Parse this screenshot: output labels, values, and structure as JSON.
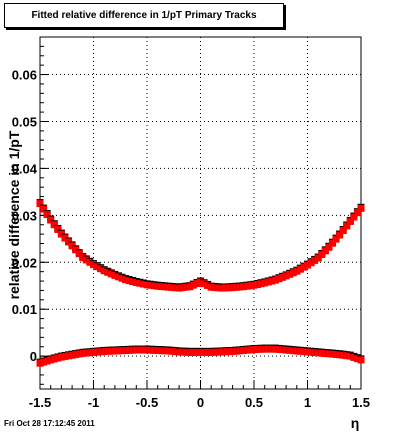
{
  "title": "Fitted relative difference in 1/pT  Primary Tracks",
  "timestamp": "Fri Oct 28 17:12:45 2011",
  "chart_data": {
    "type": "scatter",
    "title": "Fitted relative difference in 1/pT  Primary Tracks",
    "xlabel": "η",
    "ylabel": "relative difference in 1/pT",
    "xlim": [
      -1.5,
      1.5
    ],
    "ylim": [
      -0.007,
      0.068
    ],
    "grid": true,
    "x_ticks": [
      "-1.5",
      "-1",
      "-0.5",
      "0",
      "0.5",
      "1",
      "1.5"
    ],
    "y_ticks": [
      "0",
      "0.01",
      "0.02",
      "0.03",
      "0.04",
      "0.05",
      "0.06"
    ],
    "x_tick_values": [
      -1.5,
      -1,
      -0.5,
      0,
      0.5,
      1,
      1.5
    ],
    "y_tick_values": [
      0,
      0.01,
      0.02,
      0.03,
      0.04,
      0.05,
      0.06
    ],
    "x": [
      -1.5,
      -1.4,
      -1.3,
      -1.2,
      -1.1,
      -1.0,
      -0.9,
      -0.8,
      -0.7,
      -0.6,
      -0.5,
      -0.4,
      -0.3,
      -0.2,
      -0.1,
      0.0,
      0.1,
      0.2,
      0.3,
      0.4,
      0.5,
      0.6,
      0.7,
      0.8,
      0.9,
      1.0,
      1.1,
      1.2,
      1.3,
      1.4,
      1.5
    ],
    "series": [
      {
        "color": "#ff0000",
        "values": [
          0.0325,
          0.029,
          0.026,
          0.0235,
          0.021,
          0.0195,
          0.0182,
          0.0172,
          0.0163,
          0.0157,
          0.0152,
          0.0149,
          0.0147,
          0.0145,
          0.0148,
          0.0158,
          0.0147,
          0.0145,
          0.0146,
          0.0148,
          0.0151,
          0.0156,
          0.0162,
          0.0171,
          0.0181,
          0.0194,
          0.0209,
          0.0232,
          0.0258,
          0.0287,
          0.0315
        ]
      },
      {
        "color": "#ff0000",
        "values": [
          -0.0015,
          -0.0008,
          -0.0002,
          0.0002,
          0.0006,
          0.0008,
          0.001,
          0.0011,
          0.0012,
          0.0013,
          0.0013,
          0.0012,
          0.0011,
          0.0009,
          0.0008,
          0.0008,
          0.0008,
          0.0009,
          0.001,
          0.0012,
          0.0014,
          0.0015,
          0.0015,
          0.0013,
          0.0011,
          0.0009,
          0.0007,
          0.0005,
          0.0003,
          0.0,
          -0.0008
        ]
      }
    ]
  }
}
